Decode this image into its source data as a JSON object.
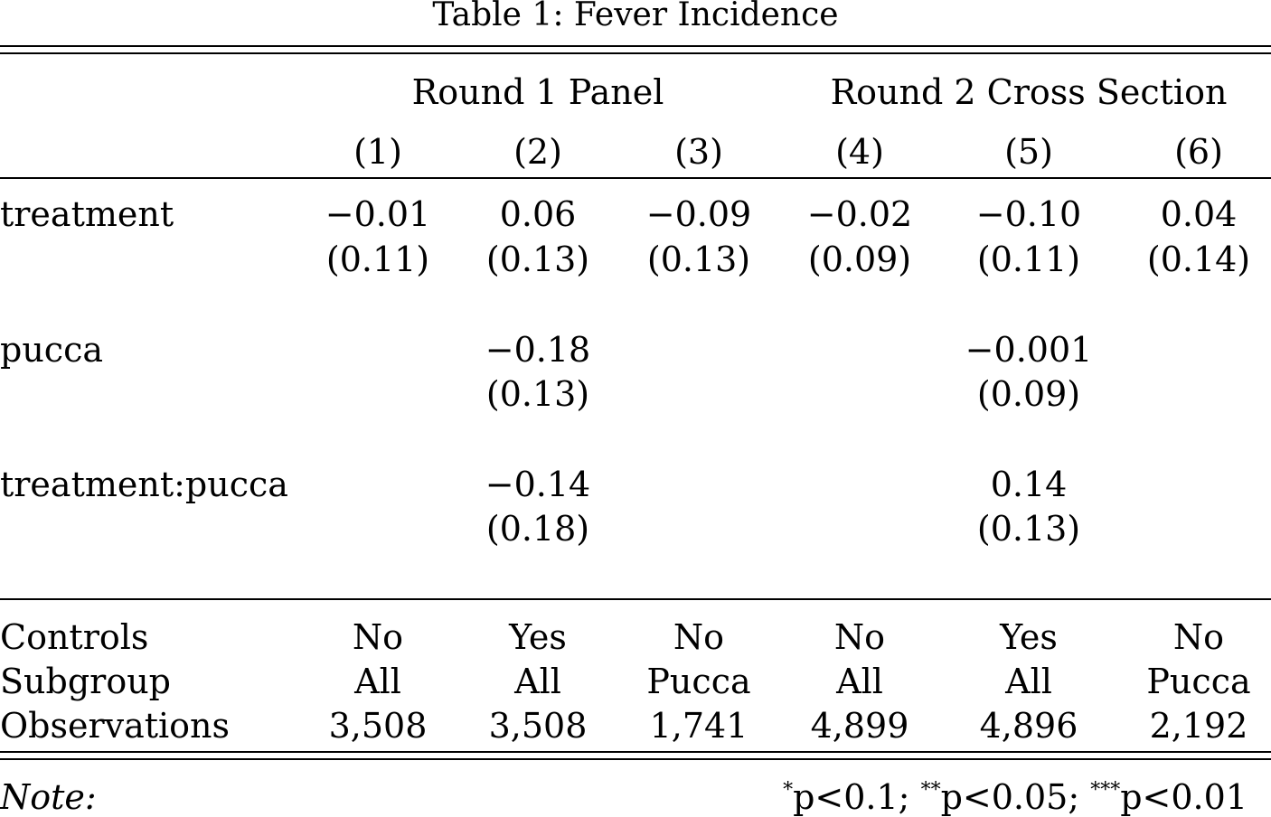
{
  "caption": "Table 1: Fever Incidence",
  "groups": [
    "Round 1 Panel",
    "Round 2 Cross Section"
  ],
  "column_numbers": [
    "(1)",
    "(2)",
    "(3)",
    "(4)",
    "(5)",
    "(6)"
  ],
  "rows": [
    {
      "label": "treatment",
      "coef": [
        "−0.01",
        "0.06",
        "−0.09",
        "−0.02",
        "−0.10",
        "0.04"
      ],
      "se": [
        "(0.11)",
        "(0.13)",
        "(0.13)",
        "(0.09)",
        "(0.11)",
        "(0.14)"
      ]
    },
    {
      "label": "pucca",
      "coef": [
        "",
        "−0.18",
        "",
        "",
        "−0.001",
        ""
      ],
      "se": [
        "",
        "(0.13)",
        "",
        "",
        "(0.09)",
        ""
      ]
    },
    {
      "label": "treatment:pucca",
      "coef": [
        "",
        "−0.14",
        "",
        "",
        "0.14",
        ""
      ],
      "se": [
        "",
        "(0.18)",
        "",
        "",
        "(0.13)",
        ""
      ]
    }
  ],
  "bottom": [
    {
      "label": "Controls",
      "values": [
        "No",
        "Yes",
        "No",
        "No",
        "Yes",
        "No"
      ]
    },
    {
      "label": "Subgroup",
      "values": [
        "All",
        "All",
        "Pucca",
        "All",
        "All",
        "Pucca"
      ]
    },
    {
      "label": "Observations",
      "values": [
        "3,508",
        "3,508",
        "1,741",
        "4,899",
        "4,896",
        "2,192"
      ]
    }
  ],
  "note": {
    "label": "Note:",
    "sig1_star": "*",
    "sig1_text": "p<0.1; ",
    "sig2_star": "**",
    "sig2_text": "p<0.05; ",
    "sig3_star": "***",
    "sig3_text": "p<0.01"
  }
}
